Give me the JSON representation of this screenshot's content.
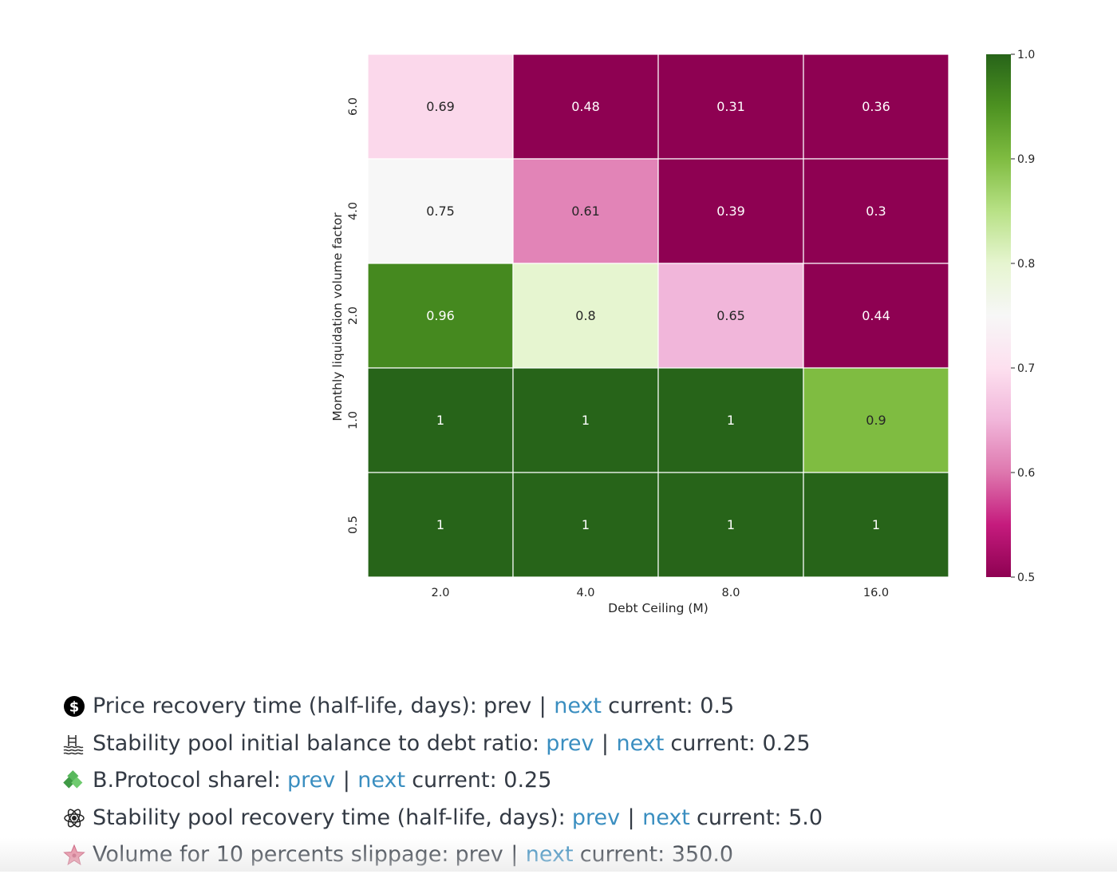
{
  "chart_data": {
    "type": "heatmap",
    "xlabel": "Debt Ceiling (M)",
    "ylabel": "Monthly liquidation volume factor",
    "x_categories": [
      "2.0",
      "4.0",
      "8.0",
      "16.0"
    ],
    "y_categories": [
      "6.0",
      "4.0",
      "2.0",
      "1.0",
      "0.5"
    ],
    "values": [
      [
        0.69,
        0.48,
        0.31,
        0.36
      ],
      [
        0.75,
        0.61,
        0.39,
        0.3
      ],
      [
        0.96,
        0.8,
        0.65,
        0.44
      ],
      [
        1,
        1,
        1,
        0.9
      ],
      [
        1,
        1,
        1,
        1
      ]
    ],
    "value_labels": [
      [
        "0.69",
        "0.48",
        "0.31",
        "0.36"
      ],
      [
        "0.75",
        "0.61",
        "0.39",
        "0.3"
      ],
      [
        "0.96",
        "0.8",
        "0.65",
        "0.44"
      ],
      [
        "1",
        "1",
        "1",
        "0.9"
      ],
      [
        "1",
        "1",
        "1",
        "1"
      ]
    ],
    "colorbar": {
      "min": 0.5,
      "max": 1.0,
      "ticks": [
        "1.0",
        "0.9",
        "0.8",
        "0.7",
        "0.6",
        "0.5"
      ],
      "colormap": "PiYG",
      "stops": [
        "#8e0152",
        "#c51b7d",
        "#de77ae",
        "#f1b6da",
        "#fde0ef",
        "#f7f7f7",
        "#e6f5d0",
        "#b8e186",
        "#7fbc41",
        "#4d9221",
        "#276419"
      ]
    }
  },
  "controls": [
    {
      "icon": "dollar-icon",
      "label": "Price recovery time (half-life, days):",
      "prev": "prev",
      "prev_link": false,
      "sep": "|",
      "next": "next",
      "next_link": true,
      "current": "current: 0.5"
    },
    {
      "icon": "pool-icon",
      "label": "Stability pool initial balance to debt ratio:",
      "prev": "prev",
      "prev_link": true,
      "sep": "|",
      "next": "next",
      "next_link": true,
      "current": "current: 0.25"
    },
    {
      "icon": "diamond-blocks-icon",
      "label": "B.Protocol sharel:",
      "prev": "prev",
      "prev_link": true,
      "sep": "|",
      "next": "next",
      "next_link": true,
      "current": "current: 0.25"
    },
    {
      "icon": "atom-icon",
      "label": "Stability pool recovery time (half-life, days):",
      "prev": "prev",
      "prev_link": true,
      "sep": "|",
      "next": "next",
      "next_link": true,
      "current": "current: 5.0"
    },
    {
      "icon": "star-icon",
      "label": "Volume for 10 percents slippage:",
      "prev": "prev",
      "prev_link": false,
      "sep": "|",
      "next": "next",
      "next_link": true,
      "current": "current: 350.0"
    }
  ]
}
